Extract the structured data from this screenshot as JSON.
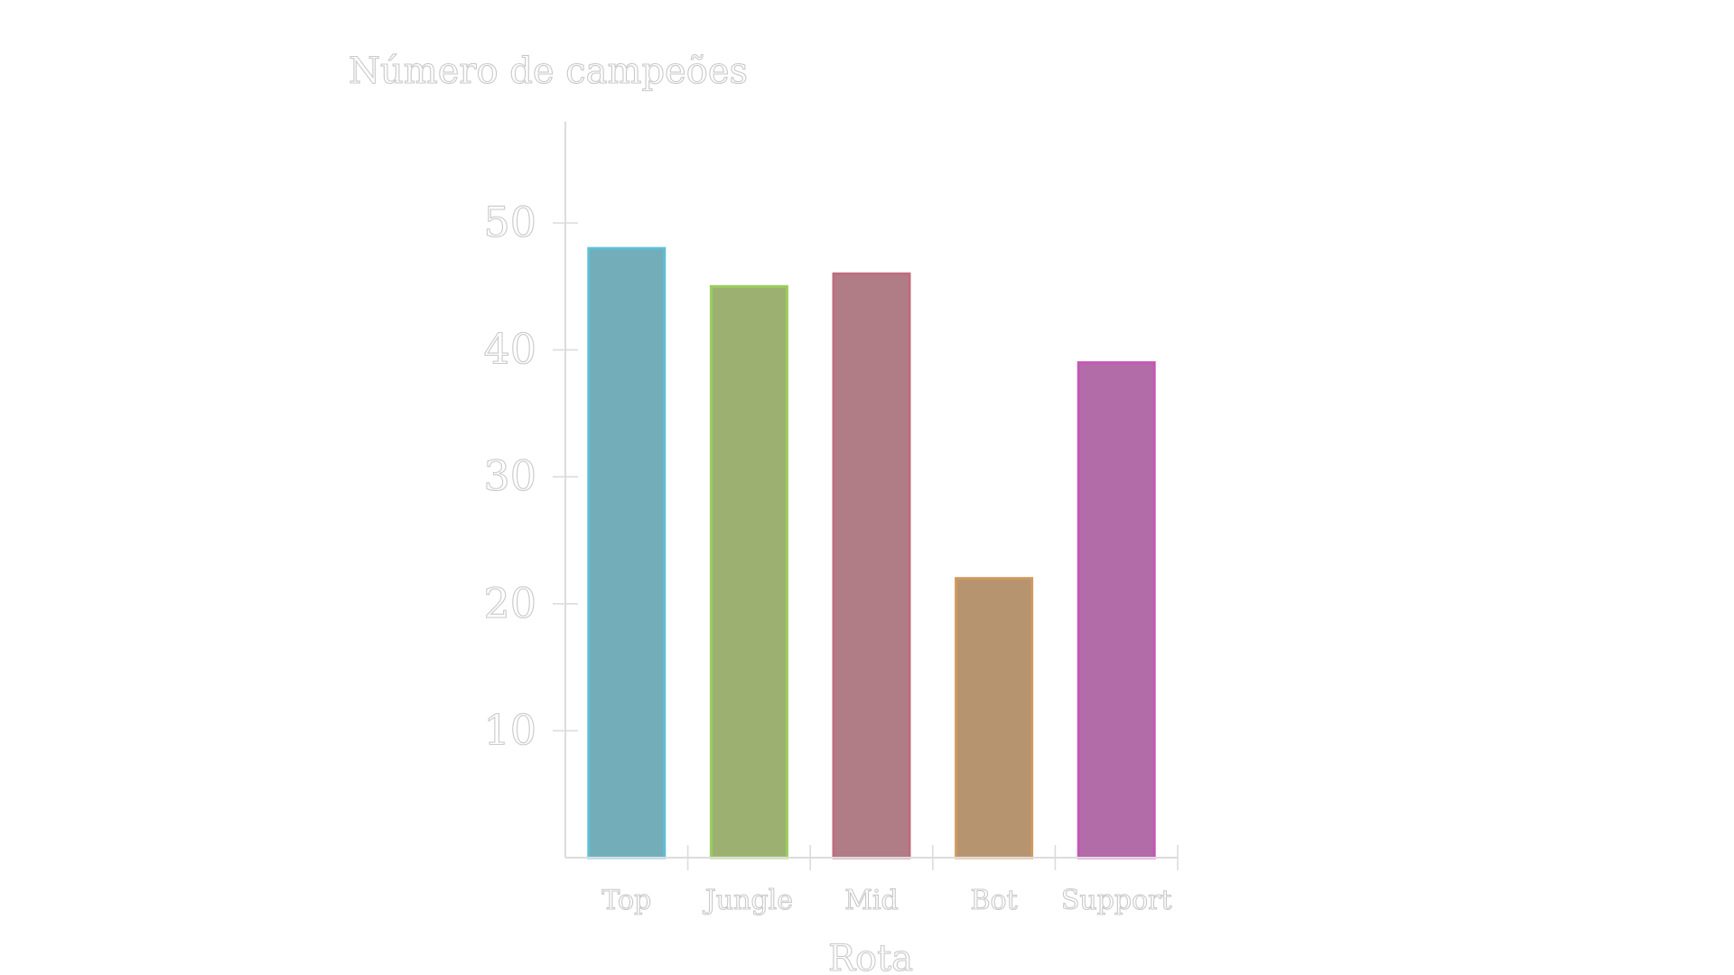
{
  "chart_data": {
    "type": "bar",
    "title": "",
    "ylabel": "Número de campeões",
    "xlabel": "Rota",
    "categories": [
      "Top",
      "Jungle",
      "Mid",
      "Bot",
      "Support"
    ],
    "values": [
      48,
      45,
      46,
      22,
      39
    ],
    "ylim": [
      0,
      58
    ],
    "yticks": [
      10,
      20,
      30,
      40,
      50
    ],
    "grid": false,
    "legend": "none",
    "colors": [
      {
        "fill": "#73adb9",
        "edge": "#5fbfd6"
      },
      {
        "fill": "#9cb171",
        "edge": "#9ccc5f"
      },
      {
        "fill": "#b07d86",
        "edge": "#bf6d7e"
      },
      {
        "fill": "#b79470",
        "edge": "#cf9a5e"
      },
      {
        "fill": "#b26da8",
        "edge": "#c457b5"
      }
    ]
  }
}
